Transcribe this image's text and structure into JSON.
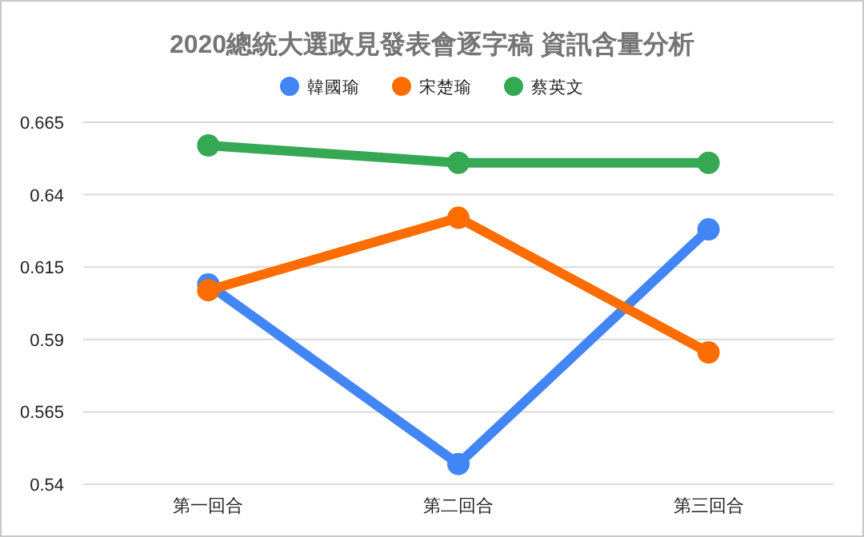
{
  "chart_data": {
    "type": "line",
    "title": "2020總統大選政見發表會逐字稿 資訊含量分析",
    "categories": [
      "第一回合",
      "第二回合",
      "第三回合"
    ],
    "series": [
      {
        "name": "韓國瑜",
        "color": "#4285f4",
        "values": [
          0.609,
          0.547,
          0.628
        ]
      },
      {
        "name": "宋楚瑜",
        "color": "#ff6d01",
        "values": [
          0.607,
          0.632,
          0.5855
        ]
      },
      {
        "name": "蔡英文",
        "color": "#34a853",
        "values": [
          0.657,
          0.651,
          0.651
        ]
      }
    ],
    "ylim": [
      0.54,
      0.665
    ],
    "yticks": [
      0.54,
      0.565,
      0.59,
      0.615,
      0.64,
      0.665
    ],
    "grid": "y",
    "legend": "top",
    "marker": "circle",
    "line_style": "solid"
  }
}
